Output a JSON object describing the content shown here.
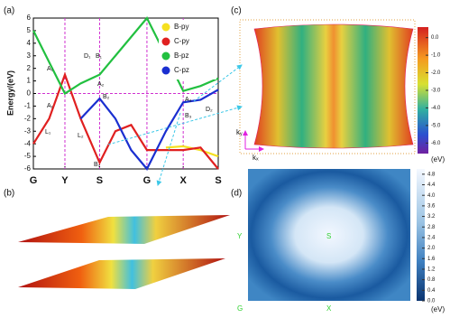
{
  "chart_data": [
    {
      "type": "line",
      "label": "(a)",
      "ylabel": "Energy/(eV)",
      "x": [
        0,
        0.5,
        1,
        1.5,
        2.1,
        2.6,
        3.1,
        3.6,
        4.2,
        4.75,
        5.3,
        5.86
      ],
      "xlim": [
        0,
        5.86
      ],
      "xticks": [
        {
          "value": 0,
          "label": "G"
        },
        {
          "value": 1,
          "label": "Y"
        },
        {
          "value": 2.1,
          "label": "S"
        },
        {
          "value": 3.6,
          "label": "G"
        },
        {
          "value": 4.75,
          "label": "X"
        },
        {
          "value": 5.86,
          "label": "S"
        }
      ],
      "ylim": [
        -6,
        6
      ],
      "yticks": [
        -6,
        -5,
        -4,
        -3,
        -2,
        -1,
        0,
        1,
        2,
        3,
        4,
        5,
        6
      ],
      "series": [
        {
          "name": "B-py",
          "color": "#f5e020",
          "values": [
            null,
            null,
            null,
            null,
            null,
            null,
            null,
            null,
            -4.3,
            -4.2,
            -4.5,
            -5
          ]
        },
        {
          "name": "C-py",
          "color": "#e02020",
          "values": [
            -4,
            -2,
            1.5,
            -2,
            -5.5,
            -3,
            -2.5,
            -4.5,
            -4.5,
            -4.5,
            -4.3,
            -6
          ]
        },
        {
          "name": "B-pz",
          "color": "#22c040",
          "values": [
            5,
            2.5,
            0,
            0.8,
            1.5,
            3,
            4.5,
            6,
            3,
            0.2,
            0.6,
            1.2
          ]
        },
        {
          "name": "C-pz",
          "color": "#1a2fd0",
          "values": [
            null,
            null,
            null,
            -2,
            -0.4,
            -2,
            -4.5,
            -6,
            -3,
            -0.7,
            -0.5,
            0.3
          ]
        }
      ],
      "annotations": [
        "A₁",
        "A₁",
        "D₁",
        "B₁",
        "A₂",
        "B₂",
        "L₁",
        "L₂",
        "B₂",
        "A₃",
        "B₃",
        "D₂"
      ]
    },
    {
      "type": "surface3d",
      "label": "(b)"
    },
    {
      "type": "surface",
      "label": "(c)",
      "axis_labels": [
        "kᵧ",
        "kₓ"
      ],
      "colorbar_unit": "(eV)",
      "clim": [
        -6.6,
        0.6
      ],
      "cticks": [
        {
          "value": 0,
          "label": "0.0"
        },
        {
          "value": -1,
          "label": "-1.0"
        },
        {
          "value": -2,
          "label": "-2.0"
        },
        {
          "value": -3,
          "label": "-3.0"
        },
        {
          "value": -4,
          "label": "-4.0"
        },
        {
          "value": -5,
          "label": "-5.0"
        },
        {
          "value": -6,
          "label": "-6.0"
        }
      ]
    },
    {
      "type": "heatmap",
      "label": "(d)",
      "points": [
        "Y",
        "S",
        "G",
        "X"
      ],
      "colorbar_unit": "(eV)",
      "clim": [
        0,
        5
      ],
      "cticks": [
        {
          "value": 0,
          "label": "0.0"
        },
        {
          "value": 0.4,
          "label": "0.4"
        },
        {
          "value": 0.8,
          "label": "0.8"
        },
        {
          "value": 1.2,
          "label": "1.2"
        },
        {
          "value": 1.6,
          "label": "1.6"
        },
        {
          "value": 2,
          "label": "2.0"
        },
        {
          "value": 2.4,
          "label": "2.4"
        },
        {
          "value": 2.8,
          "label": "2.8"
        },
        {
          "value": 3.2,
          "label": "3.2"
        },
        {
          "value": 3.6,
          "label": "3.6"
        },
        {
          "value": 4,
          "label": "4.0"
        },
        {
          "value": 4.4,
          "label": "4.4"
        },
        {
          "value": 4.8,
          "label": "4.8"
        }
      ]
    }
  ]
}
